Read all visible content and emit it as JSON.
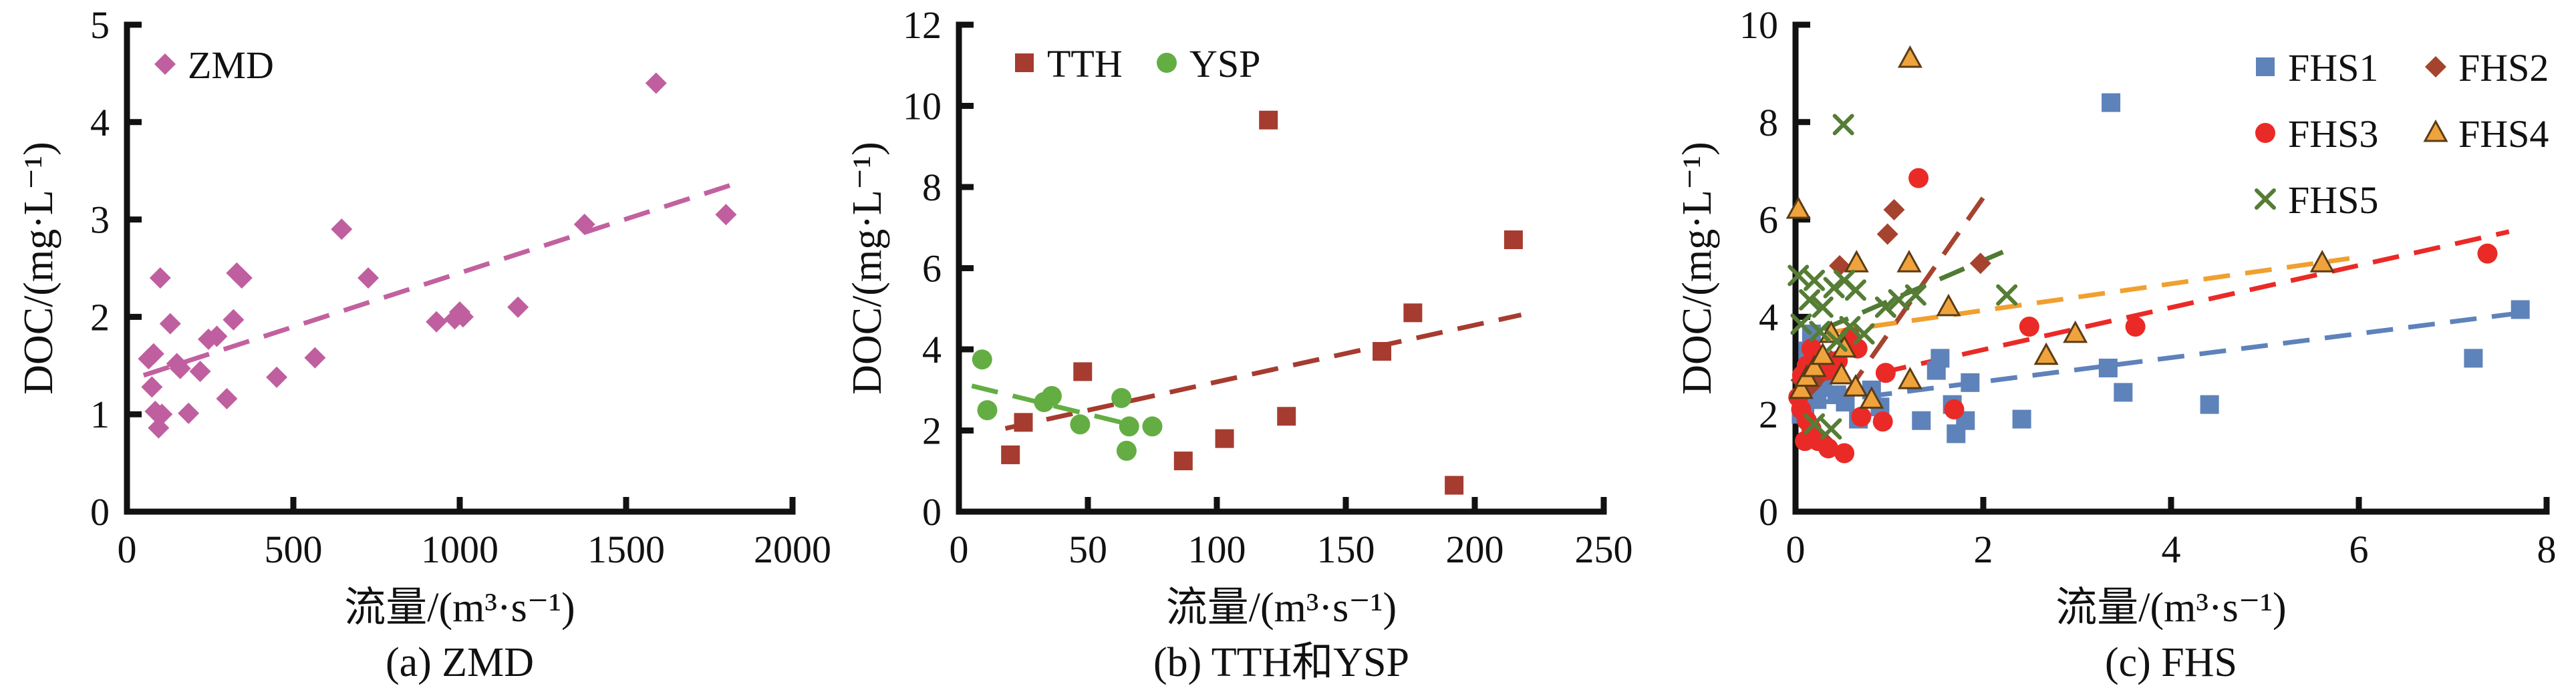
{
  "figure": {
    "background": "#ffffff",
    "axis_color": "#111111",
    "ylabel": "DOC/(mg·L⁻¹)",
    "xlabel": "流量/(m³·s⁻¹)"
  },
  "chart_data": [
    {
      "type": "scatter",
      "caption": "(a) ZMD",
      "xlabel": "流量/(m³·s⁻¹)",
      "ylabel": "DOC/(mg·L⁻¹)",
      "xlim": [
        0,
        2000
      ],
      "ylim": [
        0,
        5
      ],
      "xticks": [
        0,
        500,
        1000,
        1500,
        2000
      ],
      "yticks": [
        0,
        1,
        2,
        3,
        4,
        5
      ],
      "grid": false,
      "legend_position": "top-left",
      "series": [
        {
          "name": "ZMD",
          "marker": "diamond",
          "color": "#bf5f9f",
          "points": [
            [
              100,
              2.4
            ],
            [
              645,
              2.9
            ],
            [
              1590,
              4.4
            ],
            [
              330,
              2.45
            ],
            [
              345,
              2.4
            ],
            [
              725,
              2.4
            ],
            [
              1375,
              2.95
            ],
            [
              1800,
              3.05
            ],
            [
              1175,
              2.1
            ],
            [
              1000,
              2.05
            ],
            [
              1010,
              2.0
            ],
            [
              930,
              1.95
            ],
            [
              985,
              1.98
            ],
            [
              130,
              1.93
            ],
            [
              320,
              1.97
            ],
            [
              245,
              1.77
            ],
            [
              270,
              1.8
            ],
            [
              80,
              1.62
            ],
            [
              65,
              1.57
            ],
            [
              150,
              1.52
            ],
            [
              160,
              1.47
            ],
            [
              220,
              1.44
            ],
            [
              565,
              1.58
            ],
            [
              450,
              1.38
            ],
            [
              75,
              1.28
            ],
            [
              300,
              1.16
            ],
            [
              85,
              1.03
            ],
            [
              105,
              1.0
            ],
            [
              185,
              1.01
            ],
            [
              95,
              0.86
            ]
          ],
          "trend": {
            "x1": 50,
            "y1": 1.4,
            "x2": 1830,
            "y2": 3.37,
            "color": "#c2619f"
          }
        }
      ]
    },
    {
      "type": "scatter",
      "caption": "(b) TTH和YSP",
      "xlabel": "流量/(m³·s⁻¹)",
      "ylabel": "DOC/(mg·L⁻¹)",
      "xlim": [
        0,
        250
      ],
      "ylim": [
        0,
        12
      ],
      "xticks": [
        0,
        50,
        100,
        150,
        200,
        250
      ],
      "yticks": [
        0,
        2,
        4,
        6,
        8,
        10,
        12
      ],
      "grid": false,
      "legend_position": "top-left",
      "series": [
        {
          "name": "TTH",
          "marker": "square",
          "color": "#a63b2f",
          "points": [
            [
              20,
              1.4
            ],
            [
              25,
              2.2
            ],
            [
              48,
              3.45
            ],
            [
              87,
              1.25
            ],
            [
              103,
              1.8
            ],
            [
              120,
              9.65
            ],
            [
              127,
              2.35
            ],
            [
              164,
              3.95
            ],
            [
              176,
              4.9
            ],
            [
              192,
              0.65
            ],
            [
              215,
              6.7
            ]
          ],
          "trend": {
            "x1": 18,
            "y1": 2.05,
            "x2": 218,
            "y2": 4.85,
            "color": "#a63b2f"
          }
        },
        {
          "name": "YSP",
          "marker": "circle",
          "color": "#64ad43",
          "points": [
            [
              9,
              3.75
            ],
            [
              11,
              2.5
            ],
            [
              33,
              2.7
            ],
            [
              36,
              2.85
            ],
            [
              47,
              2.15
            ],
            [
              63,
              2.8
            ],
            [
              66,
              2.1
            ],
            [
              75,
              2.1
            ],
            [
              65,
              1.5
            ]
          ],
          "trend": {
            "x1": 5,
            "y1": 3.1,
            "x2": 63,
            "y2": 2.2,
            "color": "#64ad43"
          }
        }
      ]
    },
    {
      "type": "scatter",
      "caption": "(c) FHS",
      "xlabel": "流量/(m³·s⁻¹)",
      "ylabel": "DOC/(mg·L⁻¹)",
      "xlim": [
        0,
        8
      ],
      "ylim": [
        0,
        10
      ],
      "xticks": [
        0,
        2,
        4,
        6,
        8
      ],
      "yticks": [
        0,
        2,
        4,
        6,
        8,
        10
      ],
      "grid": false,
      "legend_position": "top-right",
      "series": [
        {
          "name": "FHS1",
          "marker": "square",
          "color": "#5e82ba",
          "points": [
            [
              0.06,
              2.0
            ],
            [
              0.1,
              2.2
            ],
            [
              0.13,
              3.3
            ],
            [
              0.17,
              3.65
            ],
            [
              0.23,
              2.3
            ],
            [
              0.29,
              2.55
            ],
            [
              0.44,
              2.4
            ],
            [
              0.53,
              2.25
            ],
            [
              0.67,
              1.9
            ],
            [
              0.81,
              2.5
            ],
            [
              0.9,
              2.15
            ],
            [
              1.34,
              1.87
            ],
            [
              1.5,
              2.9
            ],
            [
              1.54,
              3.15
            ],
            [
              1.67,
              2.2
            ],
            [
              1.71,
              1.6
            ],
            [
              1.81,
              1.87
            ],
            [
              1.86,
              2.65
            ],
            [
              2.41,
              1.9
            ],
            [
              3.33,
              2.95
            ],
            [
              3.36,
              8.4
            ],
            [
              3.49,
              2.45
            ],
            [
              4.41,
              2.2
            ],
            [
              7.22,
              3.15
            ],
            [
              7.72,
              4.15
            ]
          ],
          "trend": {
            "x1": 0.3,
            "y1": 2.25,
            "x2": 7.8,
            "y2": 4.1,
            "color": "#5e82ba"
          }
        },
        {
          "name": "FHS2",
          "marker": "diamond",
          "color": "#a6432e",
          "points": [
            [
              0.06,
              2.7
            ],
            [
              0.17,
              2.6
            ],
            [
              0.26,
              2.8
            ],
            [
              0.38,
              3.1
            ],
            [
              0.3,
              1.45
            ],
            [
              0.22,
              1.6
            ],
            [
              0.47,
              5.05
            ],
            [
              0.98,
              5.7
            ],
            [
              1.05,
              6.2
            ],
            [
              1.97,
              5.1
            ]
          ],
          "trend": {
            "x1": 0.55,
            "y1": 2.45,
            "x2": 2.0,
            "y2": 6.45,
            "color": "#a6432e"
          }
        },
        {
          "name": "FHS3",
          "marker": "circle",
          "color": "#ea2a27",
          "points": [
            [
              0.03,
              2.35
            ],
            [
              0.06,
              2.1
            ],
            [
              0.07,
              2.8
            ],
            [
              0.1,
              1.45
            ],
            [
              0.12,
              3.0
            ],
            [
              0.12,
              1.87
            ],
            [
              0.17,
              3.35
            ],
            [
              0.17,
              1.7
            ],
            [
              0.24,
              1.45
            ],
            [
              0.26,
              3.15
            ],
            [
              0.34,
              2.9
            ],
            [
              0.35,
              1.3
            ],
            [
              0.45,
              3.1
            ],
            [
              0.52,
              1.2
            ],
            [
              0.58,
              3.6
            ],
            [
              0.66,
              3.35
            ],
            [
              0.7,
              1.95
            ],
            [
              0.93,
              1.85
            ],
            [
              0.96,
              2.85
            ],
            [
              1.31,
              6.85
            ],
            [
              1.69,
              2.1
            ],
            [
              2.49,
              3.8
            ],
            [
              3.62,
              3.8
            ],
            [
              7.37,
              5.3
            ]
          ],
          "trend": {
            "x1": 0.9,
            "y1": 2.85,
            "x2": 7.6,
            "y2": 5.75,
            "color": "#ea2a27"
          }
        },
        {
          "name": "FHS4",
          "marker": "triangle",
          "color": "#f0a33c",
          "edge": "#5a3c16",
          "points": [
            [
              0.03,
              6.2
            ],
            [
              0.06,
              2.5
            ],
            [
              0.12,
              2.75
            ],
            [
              0.2,
              2.95
            ],
            [
              0.29,
              3.2
            ],
            [
              0.38,
              3.65
            ],
            [
              0.49,
              2.8
            ],
            [
              0.52,
              3.35
            ],
            [
              0.64,
              2.55
            ],
            [
              0.65,
              5.1
            ],
            [
              0.81,
              2.3
            ],
            [
              1.21,
              5.1
            ],
            [
              1.22,
              9.3
            ],
            [
              1.22,
              2.7
            ],
            [
              1.63,
              4.2
            ],
            [
              2.67,
              3.2
            ],
            [
              2.98,
              3.65
            ],
            [
              5.61,
              5.1
            ]
          ],
          "trend": {
            "x1": 0.35,
            "y1": 3.68,
            "x2": 5.9,
            "y2": 5.2,
            "color": "#f0a030"
          }
        },
        {
          "name": "FHS5",
          "marker": "x",
          "color": "#557d35",
          "points": [
            [
              0.03,
              4.85
            ],
            [
              0.06,
              3.85
            ],
            [
              0.15,
              4.35
            ],
            [
              0.2,
              4.75
            ],
            [
              0.26,
              3.7
            ],
            [
              0.29,
              4.2
            ],
            [
              0.41,
              4.6
            ],
            [
              0.44,
              3.5
            ],
            [
              0.51,
              7.95
            ],
            [
              0.52,
              4.75
            ],
            [
              0.58,
              3.8
            ],
            [
              0.64,
              4.55
            ],
            [
              0.73,
              3.65
            ],
            [
              0.96,
              4.2
            ],
            [
              1.1,
              4.35
            ],
            [
              1.28,
              4.45
            ],
            [
              2.25,
              4.45
            ],
            [
              0.2,
              1.8
            ],
            [
              0.38,
              1.7
            ]
          ],
          "trend": {
            "x1": 0.3,
            "y1": 3.75,
            "x2": 2.35,
            "y2": 5.45,
            "color": "#4f7a33"
          }
        }
      ]
    }
  ]
}
